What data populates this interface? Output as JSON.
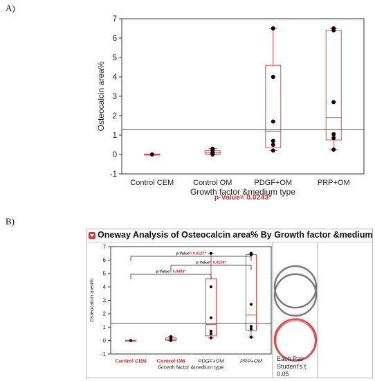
{
  "panels": {
    "a_label": "A)",
    "b_label": "B)"
  },
  "panelB": {
    "title": "Oneway Analysis of Osteocalcin area% By Growth factor &medium type",
    "side_label_1": "Each Pair",
    "side_label_2": "Student's t",
    "side_label_3": "0.05"
  },
  "colors": {
    "box": "#e04a4a",
    "point": "#000000",
    "red_text": "#d92b2b",
    "grid": "#555555",
    "circle_gray": "#7a7a7a"
  },
  "chart_data": [
    {
      "type": "box",
      "panel": "A",
      "title": "",
      "xlabel": "Growth factor &medium type",
      "ylabel": "Osteocalcin area%",
      "ylim": [
        -1,
        7
      ],
      "yticks": [
        -1,
        0,
        1,
        2,
        3,
        4,
        5,
        6,
        7
      ],
      "reference_line": 1.3,
      "annotation": {
        "prefix": "p-Value",
        "value": "= 0.0243*"
      },
      "categories": [
        "Control CEM",
        "Control OM",
        "PDGF+OM",
        "PRP+OM"
      ],
      "boxes": [
        {
          "min": 0.0,
          "q1": 0.0,
          "median": 0.0,
          "q3": 0.02,
          "max": 0.02
        },
        {
          "min": 0.0,
          "q1": 0.02,
          "median": 0.1,
          "q3": 0.2,
          "max": 0.3
        },
        {
          "min": 0.2,
          "q1": 0.35,
          "median": 1.2,
          "q3": 4.6,
          "max": 6.5
        },
        {
          "min": 0.25,
          "q1": 0.75,
          "median": 1.9,
          "q3": 6.4,
          "max": 6.5
        }
      ],
      "points": [
        [
          0.0
        ],
        [
          0.0,
          0.05,
          0.1,
          0.2,
          0.3
        ],
        [
          6.5,
          4.0,
          1.7,
          0.7,
          0.5,
          0.2
        ],
        [
          6.5,
          6.4,
          2.7,
          1.05,
          0.85,
          0.25
        ]
      ]
    },
    {
      "type": "box",
      "panel": "B",
      "xlabel": "Growth factor &medium type",
      "ylabel": "Osteocalcin area%",
      "ylim": [
        -1,
        7
      ],
      "yticks": [
        -1,
        0,
        1,
        2,
        3,
        4,
        5,
        6,
        7
      ],
      "reference_line": 1.3,
      "categories": [
        "Control CEM",
        "Control OM",
        "PDGF+OM",
        "PRP+OM"
      ],
      "category_colors": [
        "#d92b2b",
        "#d92b2b",
        "#222222",
        "#222222"
      ],
      "category_italic": [
        false,
        false,
        true,
        true
      ],
      "boxes": [
        {
          "min": 0.0,
          "q1": 0.0,
          "median": 0.0,
          "q3": 0.02,
          "max": 0.02
        },
        {
          "min": 0.0,
          "q1": 0.02,
          "median": 0.1,
          "q3": 0.2,
          "max": 0.3
        },
        {
          "min": 0.2,
          "q1": 0.35,
          "median": 1.2,
          "q3": 4.6,
          "max": 6.5
        },
        {
          "min": 0.25,
          "q1": 0.75,
          "median": 1.9,
          "q3": 6.4,
          "max": 6.5
        }
      ],
      "points": [
        [
          0.0
        ],
        [
          0.0,
          0.05,
          0.1,
          0.2,
          0.3
        ],
        [
          6.5,
          4.0,
          1.7,
          0.7,
          0.5,
          0.2
        ],
        [
          6.5,
          6.4,
          2.7,
          1.05,
          0.85,
          0.25
        ]
      ],
      "comparisons": [
        {
          "from": 0,
          "to": 3,
          "prefix": "p-Value",
          "value": "= 0.0127*"
        },
        {
          "from": 1,
          "to": 3,
          "prefix": "p-Value",
          "value": "= 0.0159*"
        },
        {
          "from": 0,
          "to": 2,
          "prefix": "p-Value",
          "value": "= 0.0499*"
        }
      ]
    }
  ]
}
